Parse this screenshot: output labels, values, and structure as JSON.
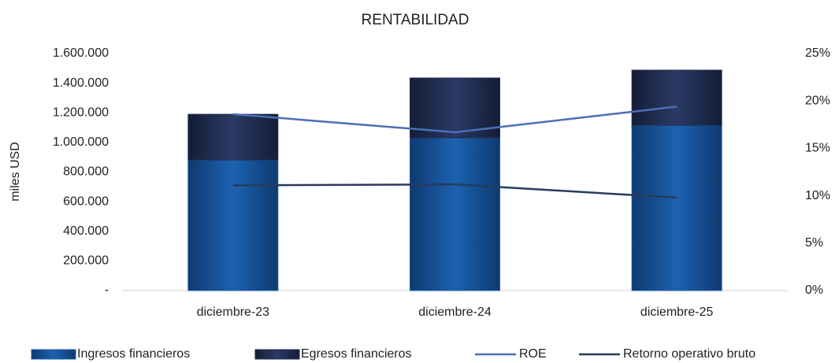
{
  "chart_data": {
    "type": "bar",
    "title": "RENTABILIDAD",
    "y_label": "miles USD",
    "categories": [
      "diciembre-23",
      "diciembre-24",
      "diciembre-25"
    ],
    "series": [
      {
        "name": "Ingresos financieros",
        "color": "#1c5ca6",
        "type": "bar",
        "values": [
          882000,
          1031000,
          1116000
        ]
      },
      {
        "name": "Egresos financieros",
        "color": "#222f52",
        "type": "bar",
        "values": [
          308000,
          404000,
          372000
        ]
      },
      {
        "name": "ROE",
        "color": "#4a6fb5",
        "type": "line",
        "axis": "y2",
        "values": [
          18.6,
          16.7,
          19.4
        ]
      },
      {
        "name": "Retorno operativo bruto",
        "color": "#263c5e",
        "type": "line",
        "axis": "y2",
        "values": [
          11.1,
          11.2,
          9.8
        ]
      }
    ],
    "ylim": [
      0,
      1600000
    ],
    "yticks": [
      {
        "value": 0,
        "label": "-"
      },
      {
        "value": 200000,
        "label": "200.000"
      },
      {
        "value": 400000,
        "label": "400.000"
      },
      {
        "value": 600000,
        "label": "600.000"
      },
      {
        "value": 800000,
        "label": "800.000"
      },
      {
        "value": 1000000,
        "label": "1.000.000"
      },
      {
        "value": 1200000,
        "label": "1.200.000"
      },
      {
        "value": 1400000,
        "label": "1.400.000"
      },
      {
        "value": 1600000,
        "label": "1.600.000"
      }
    ],
    "y2lim": [
      0,
      25
    ],
    "y2ticks": [
      {
        "value": 0,
        "label": "0%"
      },
      {
        "value": 5,
        "label": "5%"
      },
      {
        "value": 10,
        "label": "10%"
      },
      {
        "value": 15,
        "label": "15%"
      },
      {
        "value": 20,
        "label": "20%"
      },
      {
        "value": 25,
        "label": "25%"
      }
    ],
    "grid": false,
    "legend": "bottom"
  }
}
